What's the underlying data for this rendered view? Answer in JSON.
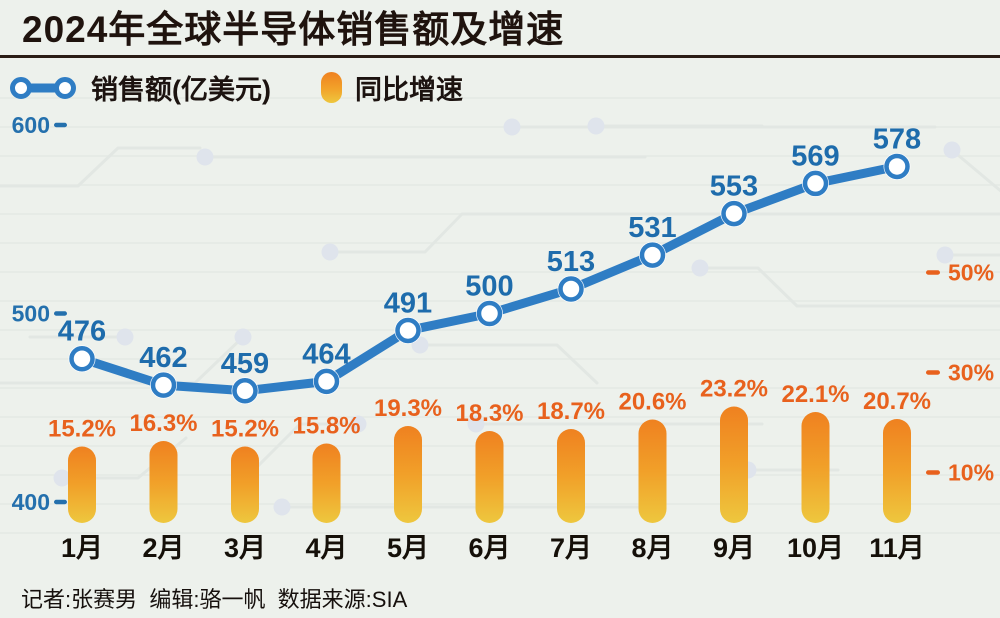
{
  "title": "2024年全球半导体销售额及增速",
  "legend": {
    "sales": "销售额(亿美元)",
    "growth": "同比增速"
  },
  "footer": "记者:张赛男  编辑:骆一帆  数据来源:SIA",
  "colors": {
    "background": "#edf1ec",
    "line": "#2f7dc4",
    "marker_fill": "#ffffff",
    "value_label": "#1e6cac",
    "left_tick": "#2470ad",
    "bar_top": "#ef8120",
    "bar_bottom": "#eec73e",
    "pct_label": "#e8611d",
    "right_tick": "#e8611d",
    "month_label": "#151009",
    "title_text": "#1f130e"
  },
  "chart_data": {
    "type": "combo",
    "title": "2024年全球半导体销售额及增速",
    "categories": [
      "1月",
      "2月",
      "3月",
      "4月",
      "5月",
      "6月",
      "7月",
      "8月",
      "9月",
      "10月",
      "11月"
    ],
    "series": [
      {
        "name": "销售额(亿美元)",
        "type": "line",
        "axis": "left",
        "values": [
          476,
          462,
          459,
          464,
          491,
          500,
          513,
          531,
          553,
          569,
          578
        ]
      },
      {
        "name": "同比增速",
        "type": "bar",
        "axis": "right",
        "unit": "%",
        "values": [
          15.2,
          16.3,
          15.2,
          15.8,
          19.3,
          18.3,
          18.7,
          20.6,
          23.2,
          22.1,
          20.7
        ]
      }
    ],
    "left_axis": {
      "ticks": [
        600,
        500,
        400
      ],
      "range": [
        400,
        600
      ]
    },
    "right_axis": {
      "ticks": [
        50,
        30,
        10
      ],
      "tick_suffix": "%",
      "range": [
        0,
        60
      ]
    },
    "legend_position": "top",
    "grid": false,
    "source": "SIA"
  }
}
